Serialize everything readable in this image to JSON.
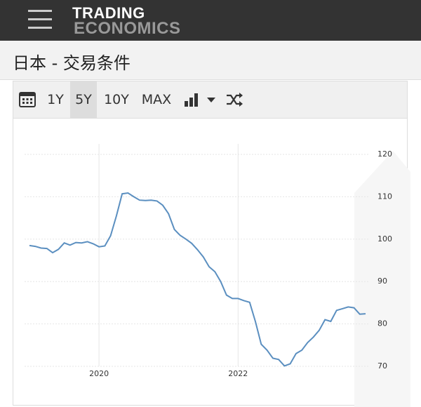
{
  "header": {
    "logo_line1": "TRADING",
    "logo_line2": "ECONOMICS"
  },
  "page_title": "日本 - 交易条件",
  "toolbar": {
    "buttons": [
      "1Y",
      "5Y",
      "10Y",
      "MAX"
    ]
  },
  "chart_data": {
    "type": "line",
    "categories": [
      null,
      null,
      null,
      null,
      null,
      null,
      null,
      null,
      null,
      null,
      null,
      null,
      "2020",
      null,
      null,
      null,
      null,
      null,
      null,
      null,
      null,
      null,
      null,
      null,
      null,
      null,
      null,
      null,
      null,
      null,
      null,
      null,
      null,
      null,
      null,
      null,
      "2022",
      null,
      null,
      null,
      null,
      null,
      null,
      null,
      null,
      null,
      null,
      null,
      null,
      null,
      null,
      null,
      null,
      null,
      null,
      null,
      null,
      null,
      null
    ],
    "values": [
      98.5,
      98.3,
      97.9,
      97.8,
      96.8,
      97.6,
      99.1,
      98.6,
      99.2,
      99.1,
      99.4,
      98.9,
      98.2,
      98.4,
      100.8,
      105.5,
      110.7,
      110.9,
      110.0,
      109.2,
      109.1,
      109.2,
      109.0,
      108.0,
      106.0,
      102.3,
      100.9,
      100.0,
      99.0,
      97.5,
      95.8,
      93.5,
      92.3,
      90.0,
      86.8,
      86.0,
      86.0,
      85.5,
      85.1,
      80.5,
      75.2,
      73.8,
      71.9,
      71.6,
      70.1,
      70.6,
      73.0,
      73.8,
      75.6,
      76.9,
      78.5,
      81.0,
      80.6,
      83.2,
      83.6,
      84.0,
      83.8,
      82.3,
      82.4
    ],
    "color": "#5b8fc0",
    "ylim": [
      70,
      120
    ],
    "yticks": [
      70,
      80,
      90,
      100,
      110,
      120
    ],
    "grid": true
  }
}
